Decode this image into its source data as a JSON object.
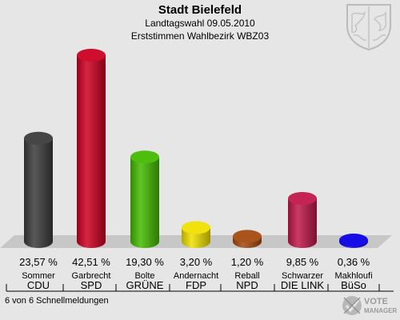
{
  "header": {
    "title": "Stadt Bielefeld",
    "subtitle1": "Landtagswahl 09.05.2010",
    "subtitle2": "Erststimmen Wahlbezirk WBZ03"
  },
  "footer": {
    "text": "6 von 6 Schnellmeldungen"
  },
  "logo": {
    "text": "VOTE MANAGER"
  },
  "chart_data": {
    "type": "bar",
    "title": "Stadt Bielefeld",
    "categories": [
      "CDU",
      "SPD",
      "GRÜNE",
      "FDP",
      "NPD",
      "DIE LINKE",
      "BüSo"
    ],
    "candidates": [
      "Sommer",
      "Garbrecht",
      "Bolte",
      "Andernacht",
      "Reball",
      "Schwarzer",
      "Makhloufi"
    ],
    "party_labels": [
      "CDU",
      "SPD",
      "GRÜNE",
      "FDP",
      "NPD",
      "DIE LINK",
      "BüSo"
    ],
    "values": [
      23.57,
      42.51,
      19.3,
      3.2,
      1.2,
      9.85,
      0.36
    ],
    "value_labels": [
      "23,57 %",
      "42,51 %",
      "19,30 %",
      "3,20 %",
      "1,20 %",
      "9,85 %",
      "0,36 %"
    ],
    "colors": [
      "#3c3c3c",
      "#cc0022",
      "#44bb00",
      "#f0e000",
      "#a64a10",
      "#c01848",
      "#0a00e6"
    ],
    "ylim": [
      0,
      42.51
    ],
    "grid": false
  }
}
